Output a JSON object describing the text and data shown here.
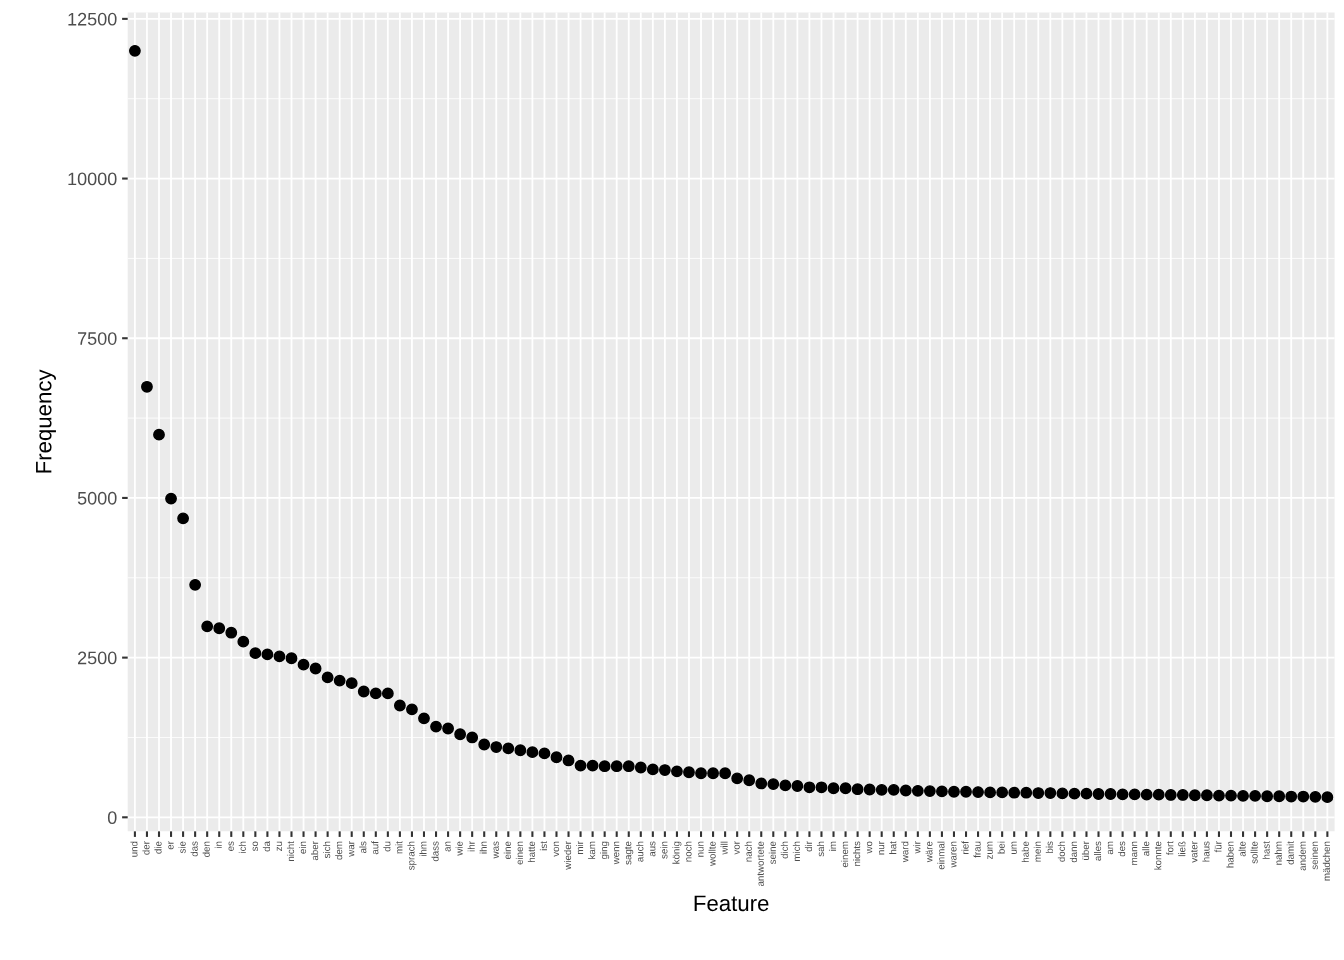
{
  "chart_data": {
    "type": "scatter",
    "xlabel": "Feature",
    "ylabel": "Frequency",
    "categories": [
      "und",
      "der",
      "die",
      "er",
      "sie",
      "das",
      "den",
      "in",
      "es",
      "ich",
      "so",
      "da",
      "zu",
      "nicht",
      "ein",
      "aber",
      "sich",
      "dem",
      "war",
      "als",
      "auf",
      "du",
      "mit",
      "sprach",
      "ihm",
      "dass",
      "an",
      "wie",
      "ihr",
      "ihn",
      "was",
      "eine",
      "einen",
      "hatte",
      "ist",
      "von",
      "wieder",
      "mir",
      "kam",
      "ging",
      "wenn",
      "sagte",
      "auch",
      "aus",
      "sein",
      "könig",
      "noch",
      "nun",
      "wollte",
      "will",
      "vor",
      "nach",
      "antwortete",
      "seine",
      "dich",
      "mich",
      "dir",
      "sah",
      "im",
      "einem",
      "nichts",
      "wo",
      "nur",
      "hat",
      "ward",
      "wir",
      "wäre",
      "einmal",
      "waren",
      "rief",
      "frau",
      "zum",
      "bei",
      "um",
      "habe",
      "mein",
      "bis",
      "doch",
      "dann",
      "über",
      "alles",
      "am",
      "des",
      "mann",
      "alle",
      "konnte",
      "fort",
      "ließ",
      "vater",
      "haus",
      "für",
      "haben",
      "alte",
      "sollte",
      "hast",
      "nahm",
      "damit",
      "andem",
      "seinen",
      "mädchen"
    ],
    "series": [
      {
        "color": "#000000",
        "values": [
          12000,
          6740,
          5990,
          4990,
          4680,
          3640,
          2990,
          2960,
          2890,
          2750,
          2570,
          2550,
          2520,
          2490,
          2390,
          2330,
          2190,
          2140,
          2100,
          1970,
          1940,
          1940,
          1750,
          1690,
          1550,
          1420,
          1390,
          1300,
          1250,
          1140,
          1100,
          1080,
          1050,
          1020,
          1000,
          940,
          890,
          810,
          810,
          800,
          800,
          800,
          780,
          750,
          740,
          720,
          705,
          690,
          690,
          690,
          610,
          580,
          530,
          520,
          500,
          490,
          470,
          470,
          455,
          455,
          440,
          435,
          430,
          430,
          420,
          415,
          410,
          405,
          400,
          400,
          395,
          390,
          390,
          385,
          385,
          380,
          380,
          375,
          370,
          370,
          365,
          365,
          360,
          360,
          355,
          355,
          350,
          350,
          345,
          345,
          340,
          340,
          335,
          335,
          330,
          330,
          325,
          325,
          320,
          315
        ]
      }
    ],
    "ylim": [
      -220,
      12600
    ],
    "yticks": [
      0,
      2500,
      5000,
      7500,
      10000,
      12500
    ],
    "grid": true,
    "marker": "circle"
  }
}
